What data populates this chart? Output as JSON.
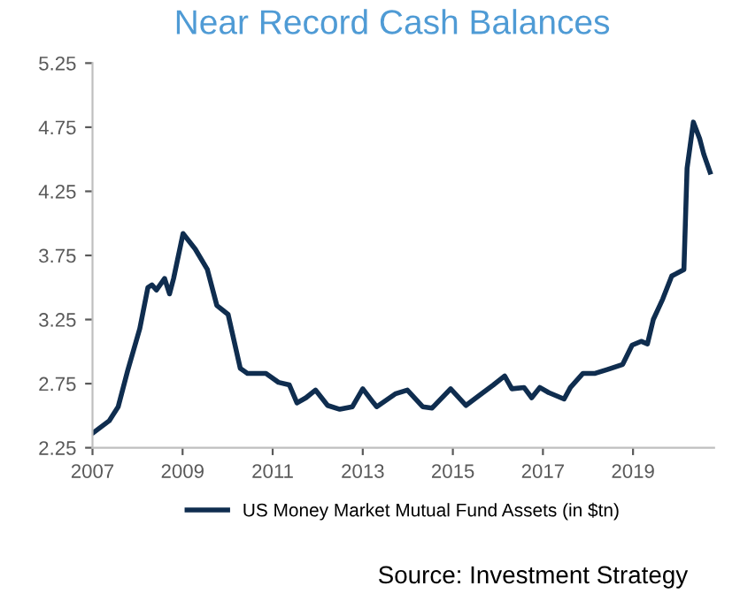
{
  "chart_data": {
    "type": "line",
    "title": "Near Record Cash Balances",
    "series": [
      {
        "name": "US Money Market Mutual Fund Assets (in $tn)",
        "color": "#0f2d4f",
        "x": [
          2007.03,
          2007.37,
          2007.57,
          2007.78,
          2008.05,
          2008.23,
          2008.32,
          2008.42,
          2008.6,
          2008.71,
          2008.8,
          2009.01,
          2009.28,
          2009.55,
          2009.76,
          2010.01,
          2010.28,
          2010.44,
          2010.65,
          2010.85,
          2011.13,
          2011.37,
          2011.54,
          2011.74,
          2011.95,
          2012.22,
          2012.49,
          2012.77,
          2013.0,
          2013.24,
          2013.31,
          2013.72,
          2013.99,
          2014.33,
          2014.54,
          2014.95,
          2015.29,
          2015.63,
          2015.9,
          2016.15,
          2016.31,
          2016.58,
          2016.75,
          2016.93,
          2017.13,
          2017.47,
          2017.61,
          2017.89,
          2018.16,
          2018.43,
          2018.77,
          2018.98,
          2019.18,
          2019.32,
          2019.45,
          2019.66,
          2019.86,
          2020.13,
          2020.2,
          2020.34,
          2020.48,
          2020.57,
          2020.71
        ],
        "values": [
          2.37,
          2.46,
          2.57,
          2.85,
          3.18,
          3.5,
          3.52,
          3.48,
          3.57,
          3.45,
          3.57,
          3.92,
          3.8,
          3.64,
          3.36,
          3.29,
          2.87,
          2.83,
          2.83,
          2.83,
          2.76,
          2.74,
          2.6,
          2.64,
          2.7,
          2.58,
          2.55,
          2.57,
          2.71,
          2.6,
          2.57,
          2.67,
          2.7,
          2.57,
          2.56,
          2.71,
          2.58,
          2.67,
          2.74,
          2.81,
          2.71,
          2.72,
          2.64,
          2.72,
          2.68,
          2.63,
          2.72,
          2.83,
          2.83,
          2.86,
          2.9,
          3.05,
          3.08,
          3.06,
          3.25,
          3.41,
          3.59,
          3.64,
          4.43,
          4.79,
          4.66,
          4.54,
          4.4
        ]
      }
    ],
    "xlim": [
      2007,
      2020.8
    ],
    "xticks": [
      2007,
      2009,
      2011,
      2013,
      2015,
      2017,
      2019
    ],
    "ylim": [
      2.25,
      5.25
    ],
    "yticks": [
      2.25,
      2.75,
      3.25,
      3.75,
      4.25,
      4.75,
      5.25
    ],
    "grid": false,
    "legend": "bottom",
    "marker": "none",
    "line_style": "solid",
    "annotations": [
      "Source: Investment Strategy"
    ]
  }
}
